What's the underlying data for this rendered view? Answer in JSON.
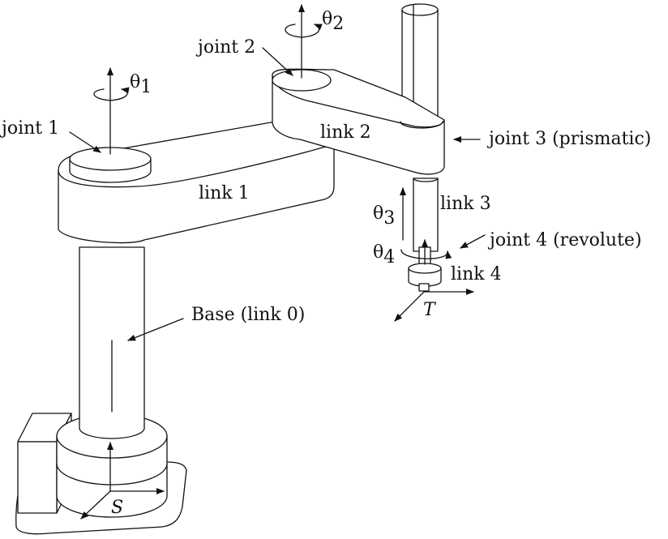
{
  "labels": {
    "joint1": "joint 1",
    "joint2": "joint 2",
    "joint3": "joint 3 (prismatic)",
    "joint4": "joint 4 (revolute)",
    "link1": "link 1",
    "link2": "link 2",
    "link3": "link 3",
    "link4": "link 4",
    "base": "Base (link 0)"
  },
  "symbols": {
    "theta1_base": "θ",
    "theta1_sub": "1",
    "theta2_base": "θ",
    "theta2_sub": "2",
    "theta3_base": "θ",
    "theta3_sub": "3",
    "theta4_base": "θ",
    "theta4_sub": "4",
    "frame_s": "S",
    "frame_t": "T"
  }
}
